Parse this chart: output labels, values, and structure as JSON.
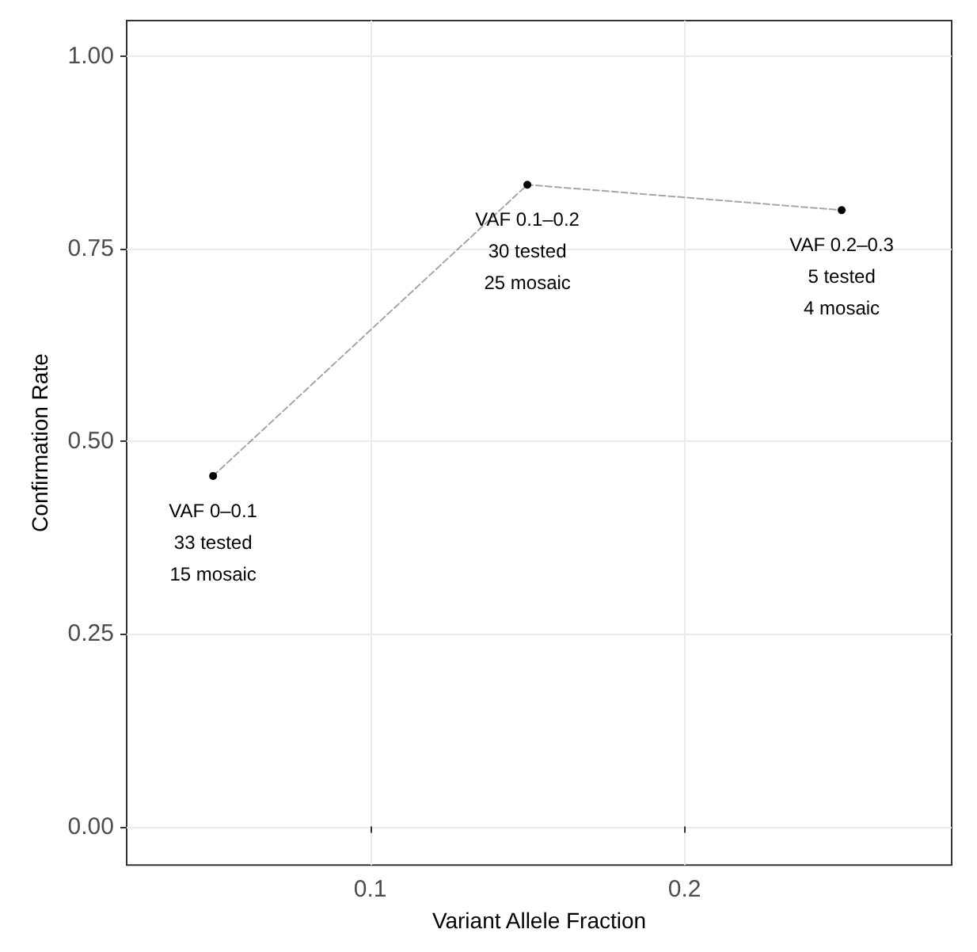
{
  "chart_data": {
    "type": "line",
    "xlabel": "Variant Allele Fraction",
    "ylabel": "Confirmation Rate",
    "x": [
      0.05,
      0.15,
      0.25
    ],
    "series": [
      {
        "color": "#000000",
        "values": [
          0.455,
          0.833,
          0.8
        ]
      }
    ],
    "xlim": [
      0.0225,
      0.285
    ],
    "xticks": [
      0.1,
      0.2
    ],
    "ylim": [
      -0.05,
      1.046
    ],
    "yticks": [
      {
        "value": 0,
        "label": "0.00"
      },
      {
        "value": 0.25,
        "label": "0.25"
      },
      {
        "value": 0.5,
        "label": "0.50"
      },
      {
        "value": 0.75,
        "label": "0.75"
      },
      {
        "value": 1,
        "label": "1.00"
      }
    ],
    "grid": true,
    "marker": "circle",
    "line_style": "dashed",
    "annotations": [
      {
        "text": "VAF 0–0.1\n33 tested\n15 mosaic",
        "x": 0.05,
        "y": 0.455
      },
      {
        "text": "VAF 0.1–0.2\n30 tested\n25 mosaic",
        "x": 0.15,
        "y": 0.833
      },
      {
        "text": "VAF 0.2–0.3\n5 tested\n4 mosaic",
        "x": 0.25,
        "y": 0.8
      }
    ]
  }
}
